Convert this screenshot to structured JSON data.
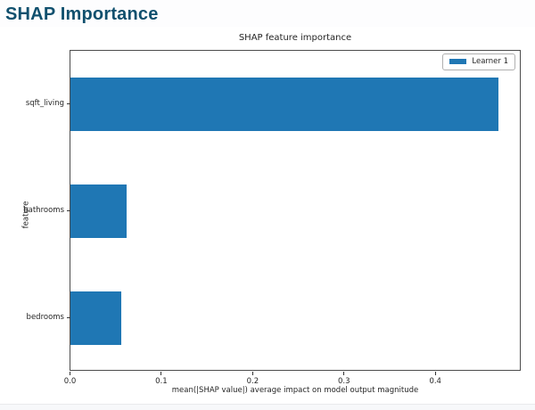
{
  "page": {
    "title": "SHAP Importance"
  },
  "colors": {
    "header_text": "#10506e",
    "bar": "#1f77b4",
    "chart_text": "#262626",
    "spine": "#4d4d4d"
  },
  "chart_data": {
    "type": "bar",
    "orientation": "horizontal",
    "title": "SHAP feature importance",
    "categories": [
      "sqft_living",
      "bathrooms",
      "bedrooms"
    ],
    "values": [
      0.47,
      0.062,
      0.056
    ],
    "xlabel": "mean(|SHAP value|) average impact on model output magnitude",
    "ylabel": "feature",
    "xlim": [
      0.0,
      0.494
    ],
    "xticks": [
      0.0,
      0.1,
      0.2,
      0.3,
      0.4
    ],
    "xtick_labels": [
      "0.0",
      "0.1",
      "0.2",
      "0.3",
      "0.4"
    ],
    "grid": false,
    "legend": {
      "position": "upper right",
      "entries": [
        {
          "label": "Learner 1",
          "color": "#1f77b4"
        }
      ]
    }
  }
}
